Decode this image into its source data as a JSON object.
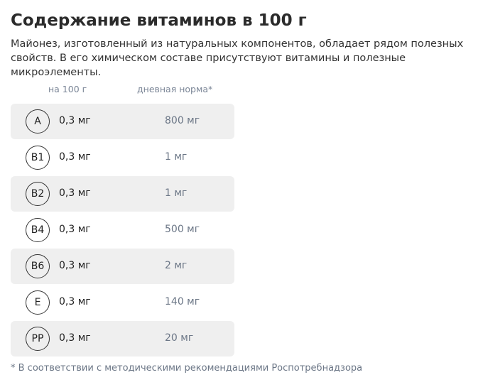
{
  "title": "Содержание витаминов в 100 г",
  "description": "Майонез, изготовленный из натуральных компонентов, обладает рядом полезных свойств. В его химическом составе присутствуют витамины и полезные микроэлементы.",
  "headers": {
    "per100": "на 100 г",
    "daily": "дневная норма*"
  },
  "rows": [
    {
      "name": "A",
      "value": "0,3 мг",
      "norm": "800 мг"
    },
    {
      "name": "B1",
      "value": "0,3 мг",
      "norm": "1 мг"
    },
    {
      "name": "B2",
      "value": "0,3 мг",
      "norm": "1 мг"
    },
    {
      "name": "B4",
      "value": "0,3 мг",
      "norm": "500 мг"
    },
    {
      "name": "B6",
      "value": "0,3 мг",
      "norm": "2 мг"
    },
    {
      "name": "E",
      "value": "0,3 мг",
      "norm": "140 мг"
    },
    {
      "name": "PP",
      "value": "0,3 мг",
      "norm": "20 мг"
    }
  ],
  "footnote": "* В соответствии с методическими рекомендациями Роспотребнадзора"
}
